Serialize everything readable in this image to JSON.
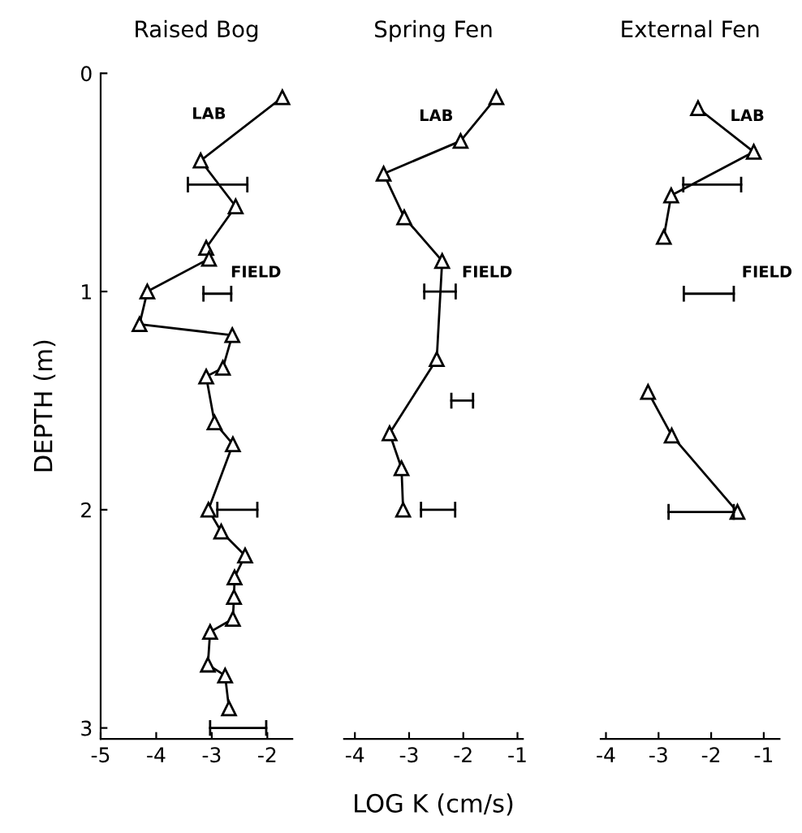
{
  "chart_data": [
    {
      "type": "line",
      "title": "Raised Bog",
      "ylabel": "DEPTH (m)",
      "xlim": [
        -5,
        -1.55
      ],
      "xticks": [
        -5,
        -4,
        -3,
        -2
      ],
      "ylim": [
        3.05,
        0
      ],
      "yticks": [
        0,
        1,
        2,
        3
      ],
      "grid": false,
      "annotations": [
        "LAB",
        "FIELD"
      ],
      "series": [
        {
          "color": "#000000",
          "marker": "triangle",
          "x": [
            -1.73,
            -3.2,
            -2.57,
            -3.1,
            -3.05,
            -4.16,
            -4.3,
            -2.63,
            -2.8,
            -3.1,
            -2.95,
            -2.62,
            -3.06,
            -2.83,
            -2.4,
            -2.59,
            -2.6,
            -2.62,
            -3.03,
            -3.07,
            -2.76,
            -2.69
          ],
          "values": [
            0.11,
            0.4,
            0.61,
            0.8,
            0.85,
            1.0,
            1.15,
            1.2,
            1.35,
            1.39,
            1.6,
            1.7,
            2.0,
            2.1,
            2.21,
            2.31,
            2.4,
            2.5,
            2.56,
            2.71,
            2.76,
            2.91
          ]
        },
        {
          "color": "#000000",
          "marker": "none",
          "x": [
            -3.43,
            -2.36
          ],
          "values": [
            0.51,
            0.51
          ]
        },
        {
          "color": "#000000",
          "marker": "none",
          "x": [
            -3.15,
            -2.65
          ],
          "values": [
            1.01,
            1.01
          ]
        },
        {
          "color": "#000000",
          "marker": "none",
          "x": [
            -2.9,
            -2.18
          ],
          "values": [
            2.0,
            2.0
          ]
        },
        {
          "color": "#000000",
          "marker": "none",
          "x": [
            -3.03,
            -2.02
          ],
          "values": [
            3.0,
            3.0
          ]
        }
      ]
    },
    {
      "type": "line",
      "title": "Spring Fen",
      "xlabel": "LOG K (cm/s)",
      "xlim": [
        -4.2,
        -0.9
      ],
      "xticks": [
        -4,
        -3,
        -2,
        -1
      ],
      "ylim": [
        3.05,
        0
      ],
      "tick_labels": "x",
      "grid": false,
      "annotations": [
        "LAB",
        "FIELD"
      ],
      "series": [
        {
          "color": "#000000",
          "marker": "triangle",
          "x": [
            -1.39,
            -2.05,
            -3.47,
            -3.09,
            -2.39,
            -2.49,
            -3.36,
            -3.14,
            -3.11
          ],
          "values": [
            0.11,
            0.31,
            0.46,
            0.66,
            0.86,
            1.31,
            1.65,
            1.81,
            2.0
          ]
        },
        {
          "color": "#000000",
          "marker": "none",
          "x": [
            -2.72,
            -2.14
          ],
          "values": [
            1.0,
            1.0
          ]
        },
        {
          "color": "#000000",
          "marker": "none",
          "x": [
            -2.22,
            -1.82
          ],
          "values": [
            1.5,
            1.5
          ]
        },
        {
          "color": "#000000",
          "marker": "none",
          "x": [
            -2.78,
            -2.15
          ],
          "values": [
            2.0,
            2.0
          ]
        }
      ]
    },
    {
      "type": "line",
      "title": "External Fen",
      "xlim": [
        -4.1,
        -0.7
      ],
      "xticks": [
        -4,
        -3,
        -2,
        -1
      ],
      "ylim": [
        3.05,
        0
      ],
      "tick_labels": "x",
      "grid": false,
      "annotations": [
        "LAB",
        "FIELD"
      ],
      "series": [
        {
          "color": "#000000",
          "marker": "triangle",
          "x": [
            -2.25,
            -1.19,
            -2.76,
            -2.9
          ],
          "values": [
            0.16,
            0.36,
            0.56,
            0.75
          ]
        },
        {
          "color": "#000000",
          "marker": "triangle",
          "x": [
            -3.2,
            -2.75,
            -1.5
          ],
          "values": [
            1.46,
            1.66,
            2.01
          ]
        },
        {
          "color": "#000000",
          "marker": "none",
          "x": [
            -2.53,
            -1.43
          ],
          "values": [
            0.51,
            0.51
          ]
        },
        {
          "color": "#000000",
          "marker": "none",
          "x": [
            -2.52,
            -1.57
          ],
          "values": [
            1.01,
            1.01
          ]
        },
        {
          "color": "#000000",
          "marker": "none",
          "x": [
            -2.81,
            -1.57
          ],
          "values": [
            2.01,
            2.01
          ]
        }
      ]
    }
  ]
}
